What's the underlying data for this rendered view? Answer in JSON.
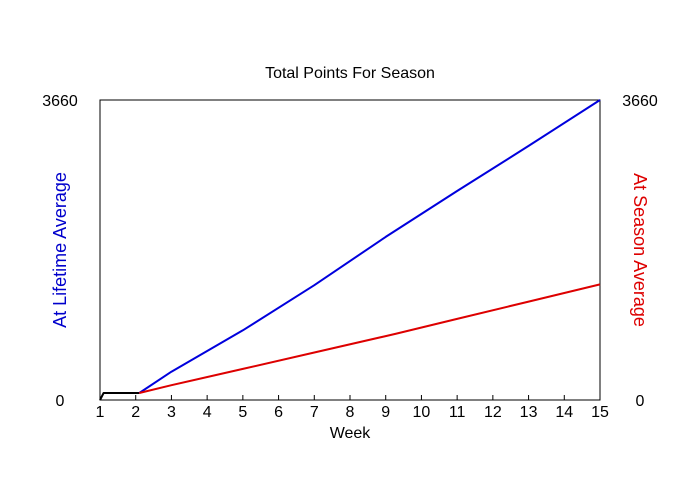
{
  "chart_data": {
    "type": "line",
    "title": "Total Points For Season",
    "xlabel": "Week",
    "ylabel_left": "At Lifetime Average",
    "ylabel_right": "At Season Average",
    "xlim": [
      1,
      15
    ],
    "ylim_left": [
      0,
      3660
    ],
    "ylim_right": [
      0,
      3660
    ],
    "x_ticks": [
      1,
      2,
      3,
      4,
      5,
      6,
      7,
      8,
      9,
      10,
      11,
      12,
      13,
      14,
      15
    ],
    "y_ticks_left": [
      "0",
      "3660"
    ],
    "y_ticks_right": [
      "0",
      "3660"
    ],
    "grid": false,
    "legend": "none",
    "series": [
      {
        "color": "#000000",
        "axis": "left",
        "x": [
          1,
          1.1,
          2.1
        ],
        "y": [
          0,
          85,
          85
        ]
      },
      {
        "color": "#0000dd",
        "axis": "left",
        "x": [
          2.1,
          3,
          5,
          7,
          9,
          11,
          13,
          15
        ],
        "y": [
          85,
          345,
          850,
          1400,
          1990,
          2550,
          3100,
          3660
        ]
      },
      {
        "color": "#dd0000",
        "axis": "right",
        "x": [
          2.1,
          3,
          5,
          7,
          9,
          9.3,
          11,
          13,
          15
        ],
        "y": [
          85,
          180,
          380,
          580,
          780,
          810,
          990,
          1200,
          1410
        ]
      }
    ]
  }
}
